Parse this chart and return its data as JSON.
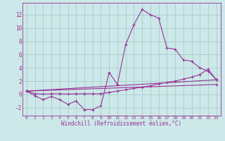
{
  "background_color": "#cce8e8",
  "grid_color": "#aacccc",
  "line_color": "#993399",
  "marker_color": "#993399",
  "xlabel": "Windchill (Refroidissement éolien,°C)",
  "xlim": [
    -0.5,
    23.5
  ],
  "ylim": [
    -3.2,
    13.8
  ],
  "yticks": [
    -2,
    0,
    2,
    4,
    6,
    8,
    10,
    12
  ],
  "xticks": [
    0,
    1,
    2,
    3,
    4,
    5,
    6,
    7,
    8,
    9,
    10,
    11,
    12,
    13,
    14,
    15,
    16,
    17,
    18,
    19,
    20,
    21,
    22,
    23
  ],
  "series": [
    {
      "x": [
        0,
        1,
        2,
        3,
        4,
        5,
        6,
        7,
        8,
        9,
        10,
        11,
        12,
        13,
        14,
        15,
        16,
        17,
        18,
        19,
        20,
        21,
        22,
        23
      ],
      "y": [
        0.5,
        -0.2,
        -0.8,
        -0.3,
        -0.8,
        -1.5,
        -1.0,
        -2.3,
        -2.3,
        -1.7,
        3.3,
        1.5,
        7.5,
        10.5,
        12.8,
        12.0,
        11.5,
        7.0,
        6.8,
        5.2,
        5.0,
        4.0,
        3.5,
        2.2
      ]
    },
    {
      "x": [
        0,
        1,
        2,
        3,
        4,
        5,
        6,
        7,
        8,
        9,
        10,
        11,
        12,
        13,
        14,
        15,
        16,
        17,
        18,
        19,
        20,
        21,
        22,
        23
      ],
      "y": [
        0.5,
        0.1,
        0.05,
        0.1,
        0.1,
        0.05,
        0.1,
        0.1,
        0.1,
        0.1,
        0.3,
        0.5,
        0.7,
        0.9,
        1.1,
        1.3,
        1.6,
        1.8,
        2.0,
        2.3,
        2.6,
        3.0,
        3.8,
        2.2
      ]
    },
    {
      "x": [
        0,
        23
      ],
      "y": [
        0.5,
        2.2
      ]
    },
    {
      "x": [
        0,
        23
      ],
      "y": [
        0.5,
        1.5
      ]
    }
  ]
}
